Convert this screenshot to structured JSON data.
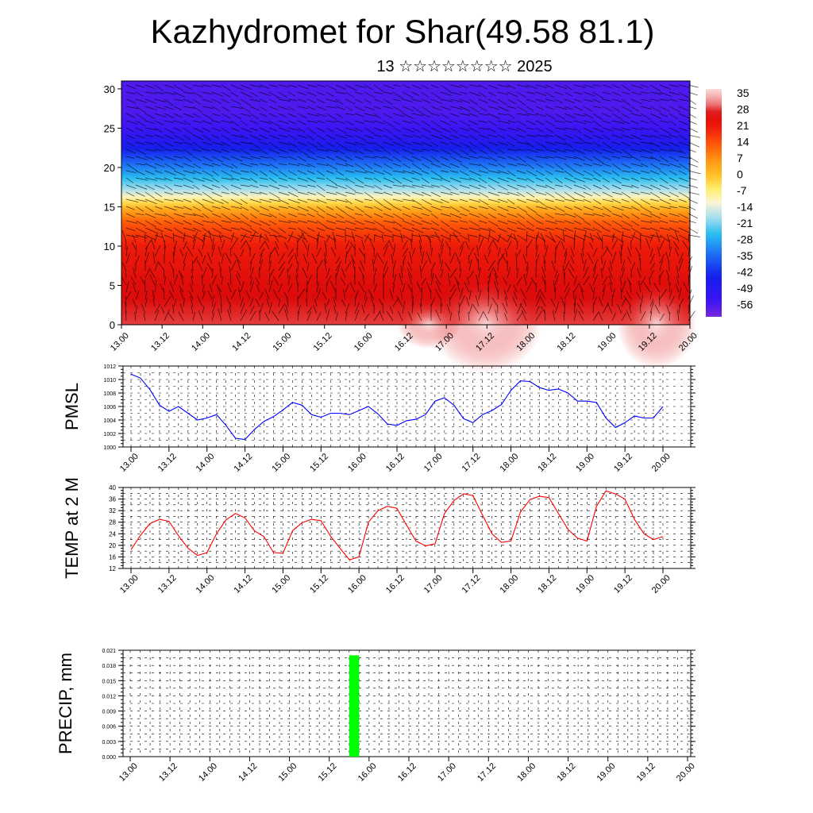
{
  "header": {
    "title": "Kazhydromet for Shar(49.58 81.1)",
    "subtitle": "13 ☆☆☆☆☆☆☆☆ 2025"
  },
  "colors": {
    "pmsl_line": "#0000ff",
    "temp_line": "#ff0000",
    "precip_bar": "#00ff00"
  },
  "time_labels": [
    "13.00",
    "13.12",
    "14.00",
    "14.12",
    "15.00",
    "15.12",
    "16.00",
    "16.12",
    "17.00",
    "17.12",
    "18.00",
    "18.12",
    "19.00",
    "19.12",
    "20.00"
  ],
  "chart_data": [
    {
      "type": "heatmap",
      "title": "Kazhydromet for Shar(49.58 81.1)",
      "y_ticks": [
        "0",
        "5",
        "10",
        "15",
        "20",
        "25",
        "30"
      ],
      "ylim": [
        0,
        31
      ],
      "colorbar": {
        "labels": [
          "35",
          "28",
          "21",
          "14",
          "7",
          "0",
          "-7",
          "-14",
          "-21",
          "-28",
          "-35",
          "-42",
          "-49",
          "-56"
        ],
        "range": [
          -63,
          39
        ]
      },
      "temperature_profile": {
        "levels": [
          0,
          5,
          10,
          13,
          15,
          16,
          17,
          19,
          21,
          23,
          25,
          27,
          31
        ],
        "values": [
          30,
          27,
          22,
          14,
          2,
          -8,
          -17,
          -28,
          -38,
          -48,
          -56,
          -58,
          -58
        ]
      },
      "overlay": "wind barbs"
    },
    {
      "type": "line",
      "ylabel": "PMSL",
      "ylim": [
        1000,
        1012
      ],
      "y_ticks": [
        "1000",
        "1002",
        "1004",
        "1006",
        "1008",
        "1010",
        "1012"
      ],
      "series": [
        {
          "values": [
            1010.8,
            1010.2,
            1008.5,
            1006.2,
            1005.3,
            1006.0,
            1005.0,
            1004.0,
            1004.3,
            1004.8,
            1003.2,
            1001.3,
            1001.1,
            1002.6,
            1003.8,
            1004.5,
            1005.5,
            1006.6,
            1006.2,
            1004.8,
            1004.4,
            1005.0,
            1005.0,
            1004.8,
            1005.4,
            1006.0,
            1004.9,
            1003.4,
            1003.2,
            1003.9,
            1004.1,
            1004.8,
            1006.8,
            1007.3,
            1006.2,
            1004.2,
            1003.6,
            1004.8,
            1005.4,
            1006.3,
            1008.4,
            1009.8,
            1009.7,
            1008.8,
            1008.4,
            1008.6,
            1008.0,
            1006.8,
            1006.8,
            1006.6,
            1004.3,
            1002.9,
            1003.6,
            1004.6,
            1004.3,
            1004.3,
            1006.0
          ]
        }
      ]
    },
    {
      "type": "line",
      "ylabel": "TEMP at 2 M",
      "ylim": [
        12,
        40
      ],
      "y_ticks": [
        "12",
        "16",
        "20",
        "24",
        "28",
        "32",
        "36",
        "40"
      ],
      "series": [
        {
          "values": [
            18.5,
            23.5,
            27.5,
            29.0,
            28.3,
            23.3,
            19.0,
            16.5,
            17.5,
            24.0,
            28.8,
            31.0,
            29.5,
            25.0,
            23.0,
            17.5,
            17.3,
            25.0,
            27.8,
            29.0,
            28.5,
            23.2,
            19.0,
            15.0,
            16.0,
            28.0,
            32.0,
            33.5,
            32.8,
            27.0,
            21.5,
            19.8,
            20.5,
            31.0,
            35.5,
            37.8,
            37.2,
            30.5,
            24.0,
            21.0,
            21.5,
            31.5,
            35.8,
            37.0,
            36.5,
            31.0,
            25.5,
            22.5,
            21.5,
            33.5,
            38.8,
            37.8,
            36.0,
            29.0,
            24.0,
            22.0,
            23.0
          ]
        }
      ]
    },
    {
      "type": "bar",
      "ylabel": "PRECIP, mm",
      "ylim": [
        0,
        0.021
      ],
      "y_ticks": [
        "0.000",
        "0.003",
        "0.006",
        "0.009",
        "0.012",
        "0.015",
        "0.018",
        "0.021"
      ],
      "bars": [
        {
          "start": 22,
          "end": 23,
          "value": 0.02
        }
      ]
    }
  ]
}
